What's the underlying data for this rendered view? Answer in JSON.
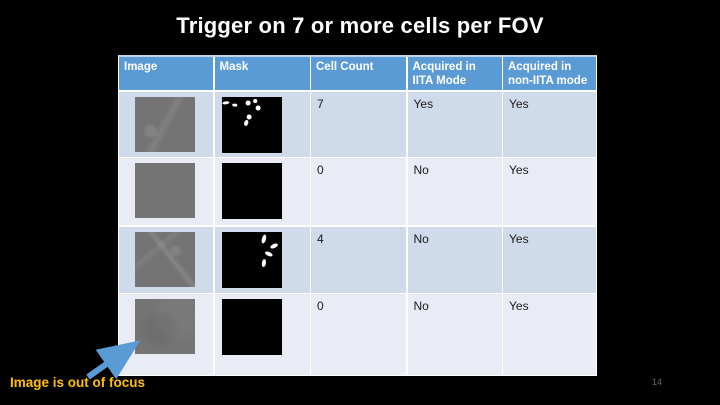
{
  "slide": {
    "title": "Trigger on 7 or more cells per FOV",
    "page_number": "14",
    "annotation": "Image is out of focus"
  },
  "table": {
    "headers": [
      "Image",
      "Mask",
      "Cell Count",
      "Acquired in IITA Mode",
      "Acquired in non-IITA mode"
    ],
    "rows": [
      {
        "cell_count": "7",
        "acquired_iita": "Yes",
        "acquired_non_iita": "Yes",
        "mask_blobs": [
          {
            "x": 8,
            "y": 11,
            "w": 12,
            "h": 6,
            "r": -8
          },
          {
            "x": 23,
            "y": 16,
            "w": 9,
            "h": 5,
            "r": 4
          },
          {
            "x": 44,
            "y": 12,
            "w": 8,
            "h": 9,
            "r": 0
          },
          {
            "x": 56,
            "y": 8,
            "w": 6,
            "h": 7,
            "r": 0
          },
          {
            "x": 61,
            "y": 20,
            "w": 8,
            "h": 9,
            "r": 0
          },
          {
            "x": 46,
            "y": 36,
            "w": 8,
            "h": 9,
            "r": 0
          },
          {
            "x": 40,
            "y": 48,
            "w": 6,
            "h": 11,
            "r": 18
          }
        ]
      },
      {
        "cell_count": "0",
        "acquired_iita": "No",
        "acquired_non_iita": "Yes",
        "mask_blobs": []
      },
      {
        "cell_count": "4",
        "acquired_iita": "No",
        "acquired_non_iita": "Yes",
        "mask_blobs": [
          {
            "x": 70,
            "y": 13,
            "w": 7,
            "h": 16,
            "r": 15
          },
          {
            "x": 87,
            "y": 26,
            "w": 13,
            "h": 7,
            "r": -25
          },
          {
            "x": 79,
            "y": 40,
            "w": 14,
            "h": 7,
            "r": 25
          },
          {
            "x": 70,
            "y": 56,
            "w": 7,
            "h": 14,
            "r": 8
          }
        ]
      },
      {
        "cell_count": "0",
        "acquired_iita": "No",
        "acquired_non_iita": "Yes",
        "mask_blobs": []
      }
    ]
  },
  "colors": {
    "header_bg": "#5B9BD5",
    "row_band_dark": "#CFDAEB",
    "row_band_light": "#E9ECF4",
    "annotation_text": "#FFC000",
    "arrow": "#5B9BD5",
    "title_text": "#FFFFFF"
  }
}
